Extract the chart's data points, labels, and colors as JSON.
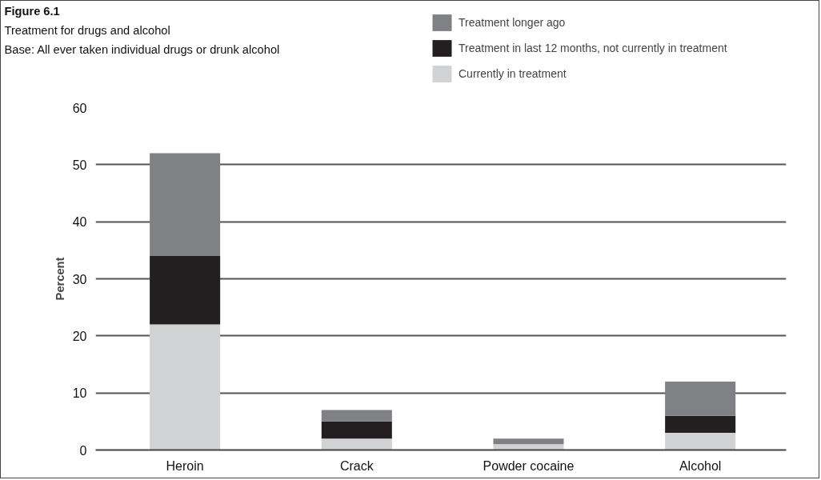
{
  "chart_data": {
    "type": "bar",
    "stacked": true,
    "title": "Figure 6.1",
    "subtitle": "Treatment for drugs and alcohol",
    "annotations": [
      "Base: All ever taken individual drugs or drunk alcohol"
    ],
    "ylabel": "Percent",
    "categories": [
      "Heroin",
      "Crack",
      "Powder cocaine",
      "Alcohol"
    ],
    "series": [
      {
        "name": "Currently in treatment",
        "color": "#d1d2d4",
        "values": [
          22,
          2,
          1,
          3
        ]
      },
      {
        "name": "Treatment in last 12 months, not currently in treatment",
        "color": "#231f20",
        "values": [
          12,
          3,
          0,
          3
        ]
      },
      {
        "name": "Treatment longer ago",
        "color": "#808184",
        "values": [
          18,
          2,
          1,
          6
        ]
      }
    ],
    "ylim": [
      0,
      60
    ],
    "yticks": [
      0,
      10,
      20,
      30,
      40,
      50,
      60
    ],
    "grid": "y",
    "legend": "top right"
  }
}
